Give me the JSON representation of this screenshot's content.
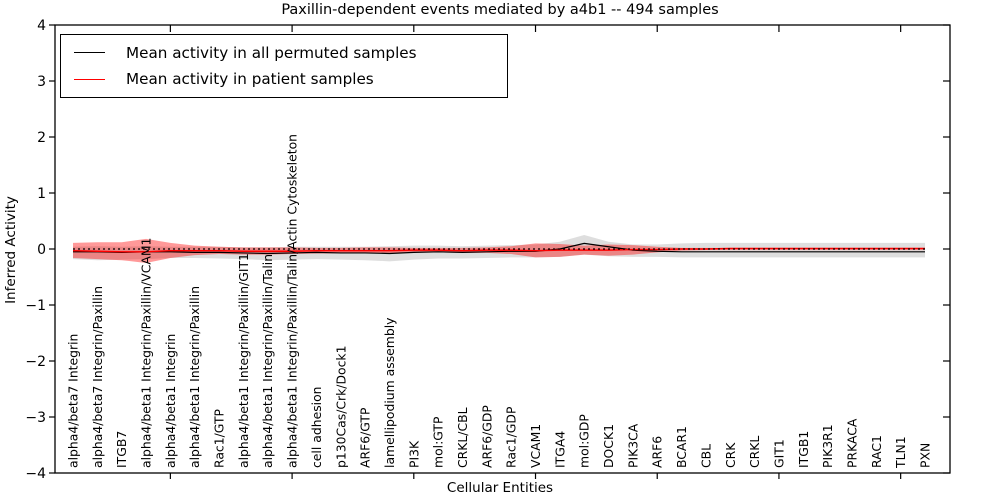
{
  "figure": {
    "title": "Paxillin-dependent events mediated by a4b1 -- 494 samples",
    "xlabel": "Cellular Entities",
    "ylabel": "Inferred Activity",
    "legend": [
      {
        "label": "Mean activity in all permuted samples",
        "color": "#000000"
      },
      {
        "label": "Mean activity in patient samples",
        "color": "#ff0000"
      }
    ]
  },
  "chart_data": {
    "type": "line",
    "title": "Paxillin-dependent events mediated by a4b1 -- 494 samples",
    "xlabel": "Cellular Entities",
    "ylabel": "Inferred Activity",
    "ylim": [
      -4,
      4
    ],
    "yticks": [
      -4,
      -3,
      -2,
      -1,
      0,
      1,
      2,
      3,
      4
    ],
    "xtick_every": 5,
    "grid": false,
    "legend_position": "upper left",
    "sample_count": 494,
    "categories": [
      "alpha4/beta7 Integrin",
      "alpha4/beta7 Integrin/Paxillin",
      "ITGB7",
      "alpha4/beta1 Integrin/Paxillin/VCAM1",
      "alpha4/beta1 Integrin",
      "alpha4/beta1 Integrin/Paxillin",
      "Rac1/GTP",
      "alpha4/beta1 Integrin/Paxillin/GIT1",
      "alpha4/beta1 Integrin/Paxillin/Talin",
      "alpha4/beta1 Integrin/Paxillin/Talin/Actin Cytoskeleton",
      "cell adhesion",
      "p130Cas/Crk/Dock1",
      "ARF6/GTP",
      "lamellipodium assembly",
      "PI3K",
      "mol:GTP",
      "CRKL/CBL",
      "ARF6/GDP",
      "Rac1/GDP",
      "VCAM1",
      "ITGA4",
      "mol:GDP",
      "DOCK1",
      "PIK3CA",
      "ARF6",
      "BCAR1",
      "CBL",
      "CRK",
      "CRKL",
      "GIT1",
      "ITGB1",
      "PIK3R1",
      "PRKACA",
      "RAC1",
      "TLN1",
      "PXN"
    ],
    "series": [
      {
        "name": "Mean activity in all permuted samples",
        "color": "#000000",
        "band_color": "#999999",
        "band_opacity": 0.32,
        "mean": [
          -0.05,
          -0.05,
          -0.06,
          -0.05,
          -0.05,
          -0.06,
          -0.06,
          -0.07,
          -0.08,
          -0.07,
          -0.06,
          -0.07,
          -0.07,
          -0.08,
          -0.06,
          -0.05,
          -0.06,
          -0.05,
          -0.04,
          -0.04,
          0.0,
          0.1,
          0.04,
          -0.02,
          -0.04,
          -0.05,
          -0.05,
          -0.05,
          -0.05,
          -0.05,
          -0.05,
          -0.05,
          -0.05,
          -0.05,
          -0.05,
          -0.05
        ],
        "upper": [
          0.04,
          0.05,
          0.04,
          0.05,
          0.04,
          0.04,
          0.04,
          0.03,
          0.03,
          0.04,
          0.04,
          0.04,
          0.04,
          0.05,
          0.06,
          0.06,
          0.05,
          0.06,
          0.07,
          0.08,
          0.13,
          0.25,
          0.13,
          0.08,
          0.08,
          0.1,
          0.11,
          0.11,
          0.11,
          0.11,
          0.11,
          0.11,
          0.11,
          0.11,
          0.11,
          0.11
        ],
        "lower": [
          -0.18,
          -0.2,
          -0.19,
          -0.18,
          -0.16,
          -0.16,
          -0.17,
          -0.18,
          -0.2,
          -0.19,
          -0.18,
          -0.19,
          -0.2,
          -0.22,
          -0.19,
          -0.17,
          -0.17,
          -0.16,
          -0.15,
          -0.15,
          -0.14,
          -0.1,
          -0.13,
          -0.14,
          -0.14,
          -0.15,
          -0.15,
          -0.15,
          -0.15,
          -0.15,
          -0.15,
          -0.15,
          -0.15,
          -0.15,
          -0.15,
          -0.15
        ]
      },
      {
        "name": "Mean activity in patient samples",
        "color": "#ff0000",
        "band_color": "#ff0000",
        "band_opacity": 0.4,
        "mean": [
          -0.03,
          -0.04,
          -0.05,
          -0.05,
          -0.03,
          -0.03,
          -0.03,
          -0.04,
          -0.04,
          -0.04,
          -0.03,
          -0.03,
          -0.03,
          -0.03,
          -0.02,
          -0.02,
          -0.03,
          -0.02,
          -0.02,
          -0.03,
          -0.02,
          -0.02,
          -0.02,
          -0.01,
          -0.01,
          0.0,
          0.0,
          0.01,
          0.01,
          0.01,
          0.01,
          0.01,
          0.01,
          0.01,
          0.01,
          0.01
        ],
        "upper": [
          0.11,
          0.12,
          0.12,
          0.18,
          0.11,
          0.06,
          0.04,
          0.03,
          0.03,
          0.03,
          0.02,
          0.02,
          0.03,
          0.03,
          0.02,
          0.02,
          0.02,
          0.03,
          0.05,
          0.1,
          0.09,
          0.06,
          0.08,
          0.07,
          0.04,
          0.02,
          0.02,
          0.02,
          0.02,
          0.02,
          0.02,
          0.02,
          0.02,
          0.02,
          0.02,
          0.02
        ],
        "lower": [
          -0.16,
          -0.18,
          -0.2,
          -0.25,
          -0.16,
          -0.11,
          -0.09,
          -0.1,
          -0.1,
          -0.09,
          -0.08,
          -0.08,
          -0.08,
          -0.08,
          -0.06,
          -0.06,
          -0.07,
          -0.07,
          -0.09,
          -0.15,
          -0.14,
          -0.1,
          -0.12,
          -0.1,
          -0.06,
          -0.03,
          -0.02,
          -0.02,
          -0.02,
          -0.02,
          -0.02,
          -0.02,
          -0.02,
          -0.02,
          -0.02,
          -0.02
        ]
      }
    ],
    "reference_line": {
      "y": 0,
      "style": "dotted",
      "color": "#000000"
    }
  }
}
